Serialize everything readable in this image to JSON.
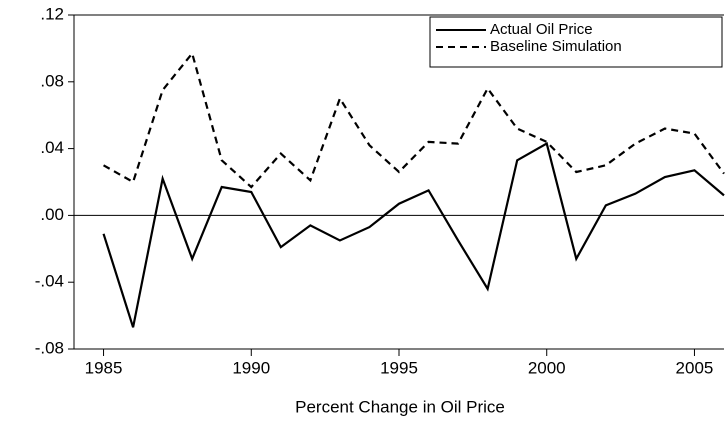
{
  "chart_data": {
    "type": "line",
    "xlabel": "Percent Change in Oil Price",
    "x": [
      1985,
      1986,
      1987,
      1988,
      1989,
      1990,
      1991,
      1992,
      1993,
      1994,
      1995,
      1996,
      1997,
      1998,
      1999,
      2000,
      2001,
      2002,
      2003,
      2004,
      2005,
      2006
    ],
    "series": [
      {
        "name": "Actual Oil Price",
        "color": "#000000",
        "dash": "solid",
        "values": [
          -0.011,
          -0.067,
          0.022,
          -0.026,
          0.017,
          0.014,
          -0.019,
          -0.006,
          -0.015,
          -0.007,
          0.007,
          0.015,
          -0.015,
          -0.044,
          0.033,
          0.043,
          -0.026,
          0.006,
          0.013,
          0.023,
          0.027,
          0.012
        ]
      },
      {
        "name": "Baseline Simulation",
        "color": "#000000",
        "dash": "dashed",
        "values": [
          0.03,
          0.02,
          0.075,
          0.097,
          0.033,
          0.017,
          0.037,
          0.021,
          0.07,
          0.042,
          0.026,
          0.044,
          0.043,
          0.076,
          0.052,
          0.044,
          0.026,
          0.03,
          0.043,
          0.052,
          0.049,
          0.025
        ]
      }
    ],
    "xlim": [
      1984,
      2006
    ],
    "xticks": [
      1985,
      1990,
      1995,
      2000,
      2005
    ],
    "ylim": [
      -0.08,
      0.12
    ],
    "yticks": [
      {
        "value": -0.08,
        "label": "-.08"
      },
      {
        "value": -0.04,
        "label": "-.04"
      },
      {
        "value": 0,
        "label": ".00"
      },
      {
        "value": 0.04,
        "label": ".04"
      },
      {
        "value": 0.08,
        "label": ".08"
      },
      {
        "value": 0.12,
        "label": ".12"
      }
    ],
    "legend": "top-right"
  }
}
